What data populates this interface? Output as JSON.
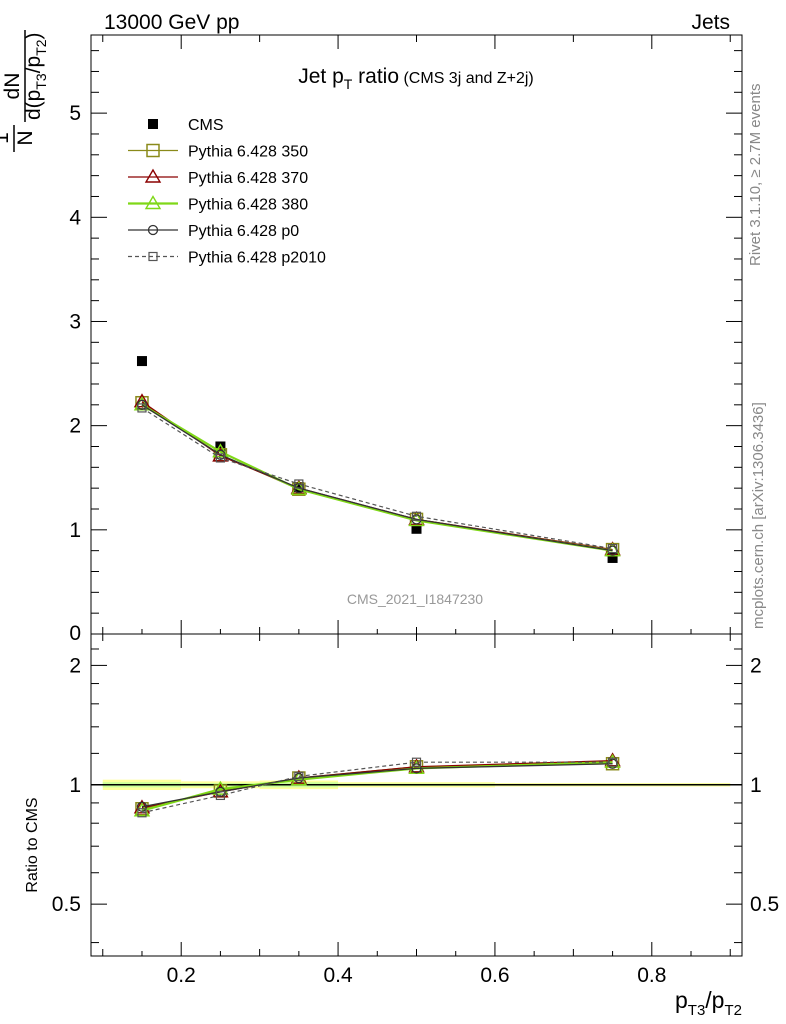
{
  "header": {
    "left": "13000 GeV pp",
    "right": "Jets"
  },
  "side_labels": {
    "rivet": "Rivet 3.1.10, ≥ 2.7M events",
    "mcplots": "mcplots.cern.ch [arXiv:1306.3436]"
  },
  "watermark": "CMS_2021_I1847230",
  "title": {
    "main": "Jet p",
    "sub": "T",
    "rest": " ratio",
    "small": " (CMS 3j and Z+2j)"
  },
  "ylabel_main": {
    "one": "1",
    "N": "N",
    "dN": "dN",
    "d": "d(p",
    "T3": "T3",
    "slash": "/p",
    "T2": "T2",
    "close": ")"
  },
  "ylabel_ratio": "Ratio to CMS",
  "xlabel": {
    "p1": "p",
    "s1": "T3",
    "mid": "/p",
    "s2": "T2"
  },
  "colors": {
    "cms": "#000000",
    "p350": "#8a8a1a",
    "p370": "#8b0000",
    "p380": "#7fd817",
    "p0": "#333333",
    "p2010": "#555555",
    "band_yellow": "#ffff9c",
    "band_green": "#ccff99"
  },
  "chart_data": [
    {
      "type": "scatter",
      "panel": "main",
      "xlim": [
        0.085,
        0.915
      ],
      "ylim": [
        0,
        5.75
      ],
      "yticks": [
        1,
        2,
        3,
        4,
        5
      ],
      "ytick_labels": [
        "1",
        "2",
        "3",
        "4",
        "5"
      ],
      "y_partial_label": "0",
      "legend_position": "top-left",
      "series": [
        {
          "name": "CMS",
          "key": "cms",
          "marker": "filled-square",
          "line": "none",
          "x": [
            0.15,
            0.25,
            0.35,
            0.5,
            0.75
          ],
          "y": [
            2.62,
            1.8,
            1.41,
            1.01,
            0.73
          ]
        },
        {
          "name": "Pythia 6.428 350",
          "key": "p350",
          "marker": "open-square",
          "line": "solid",
          "x": [
            0.15,
            0.25,
            0.35,
            0.5,
            0.75
          ],
          "y": [
            2.22,
            1.72,
            1.39,
            1.1,
            0.81
          ]
        },
        {
          "name": "Pythia 6.428 370",
          "key": "p370",
          "marker": "open-triangle",
          "line": "solid",
          "x": [
            0.15,
            0.25,
            0.35,
            0.5,
            0.75
          ],
          "y": [
            2.23,
            1.71,
            1.4,
            1.1,
            0.81
          ]
        },
        {
          "name": "Pythia 6.428 380",
          "key": "p380",
          "marker": "open-triangle",
          "line": "solid-thick",
          "x": [
            0.15,
            0.25,
            0.35,
            0.5,
            0.75
          ],
          "y": [
            2.2,
            1.75,
            1.39,
            1.09,
            0.8
          ]
        },
        {
          "name": "Pythia 6.428 p0",
          "key": "p0",
          "marker": "open-circle",
          "line": "solid",
          "x": [
            0.15,
            0.25,
            0.35,
            0.5,
            0.75
          ],
          "y": [
            2.2,
            1.72,
            1.4,
            1.1,
            0.8
          ]
        },
        {
          "name": "Pythia 6.428 p2010",
          "key": "p2010",
          "marker": "open-square-small",
          "line": "dashed",
          "x": [
            0.15,
            0.25,
            0.35,
            0.5,
            0.75
          ],
          "y": [
            2.17,
            1.69,
            1.44,
            1.13,
            0.82
          ]
        }
      ]
    },
    {
      "type": "line",
      "panel": "ratio",
      "xlim": [
        0.085,
        0.915
      ],
      "ylim": [
        0.37,
        2.4
      ],
      "log_y": true,
      "yticks": [
        0.5,
        1,
        2
      ],
      "ytick_labels": [
        "0.5",
        "1",
        "2"
      ],
      "xticks": [
        0.2,
        0.4,
        0.6,
        0.8
      ],
      "xtick_labels": [
        "0.2",
        "0.4",
        "0.6",
        "0.8"
      ],
      "reference": 1,
      "bands": [
        {
          "x0": 0.1,
          "x1": 0.2,
          "yellow": [
            0.97,
            1.03
          ],
          "green": [
            0.985,
            1.015
          ]
        },
        {
          "x0": 0.2,
          "x1": 0.3,
          "yellow": [
            0.98,
            1.02
          ],
          "green": [
            0.99,
            1.01
          ]
        },
        {
          "x0": 0.3,
          "x1": 0.4,
          "yellow": [
            0.975,
            1.025
          ],
          "green": [
            0.985,
            1.015
          ]
        },
        {
          "x0": 0.4,
          "x1": 0.6,
          "yellow": [
            0.985,
            1.015
          ],
          "green": [
            0.993,
            1.007
          ]
        },
        {
          "x0": 0.6,
          "x1": 0.9,
          "yellow": [
            0.99,
            1.01
          ],
          "green": [
            0.995,
            1.005
          ]
        }
      ],
      "series": [
        {
          "name": "Pythia 6.428 350",
          "key": "p350",
          "marker": "open-square",
          "line": "solid",
          "x": [
            0.15,
            0.25,
            0.35,
            0.5,
            0.75
          ],
          "y": [
            0.87,
            0.965,
            1.04,
            1.11,
            1.13
          ]
        },
        {
          "name": "Pythia 6.428 370",
          "key": "p370",
          "marker": "open-triangle",
          "line": "solid",
          "x": [
            0.15,
            0.25,
            0.35,
            0.5,
            0.75
          ],
          "y": [
            0.875,
            0.96,
            1.04,
            1.11,
            1.15
          ]
        },
        {
          "name": "Pythia 6.428 380",
          "key": "p380",
          "marker": "open-triangle",
          "line": "solid-thick",
          "x": [
            0.15,
            0.25,
            0.35,
            0.5,
            0.75
          ],
          "y": [
            0.86,
            0.975,
            1.03,
            1.1,
            1.14
          ]
        },
        {
          "name": "Pythia 6.428 p0",
          "key": "p0",
          "marker": "open-circle",
          "line": "solid",
          "x": [
            0.15,
            0.25,
            0.35,
            0.5,
            0.75
          ],
          "y": [
            0.88,
            0.96,
            1.04,
            1.1,
            1.13
          ]
        },
        {
          "name": "Pythia 6.428 p2010",
          "key": "p2010",
          "marker": "open-square-small",
          "line": "dashed",
          "x": [
            0.15,
            0.25,
            0.35,
            0.5,
            0.75
          ],
          "y": [
            0.85,
            0.94,
            1.05,
            1.14,
            1.14
          ]
        }
      ]
    }
  ]
}
